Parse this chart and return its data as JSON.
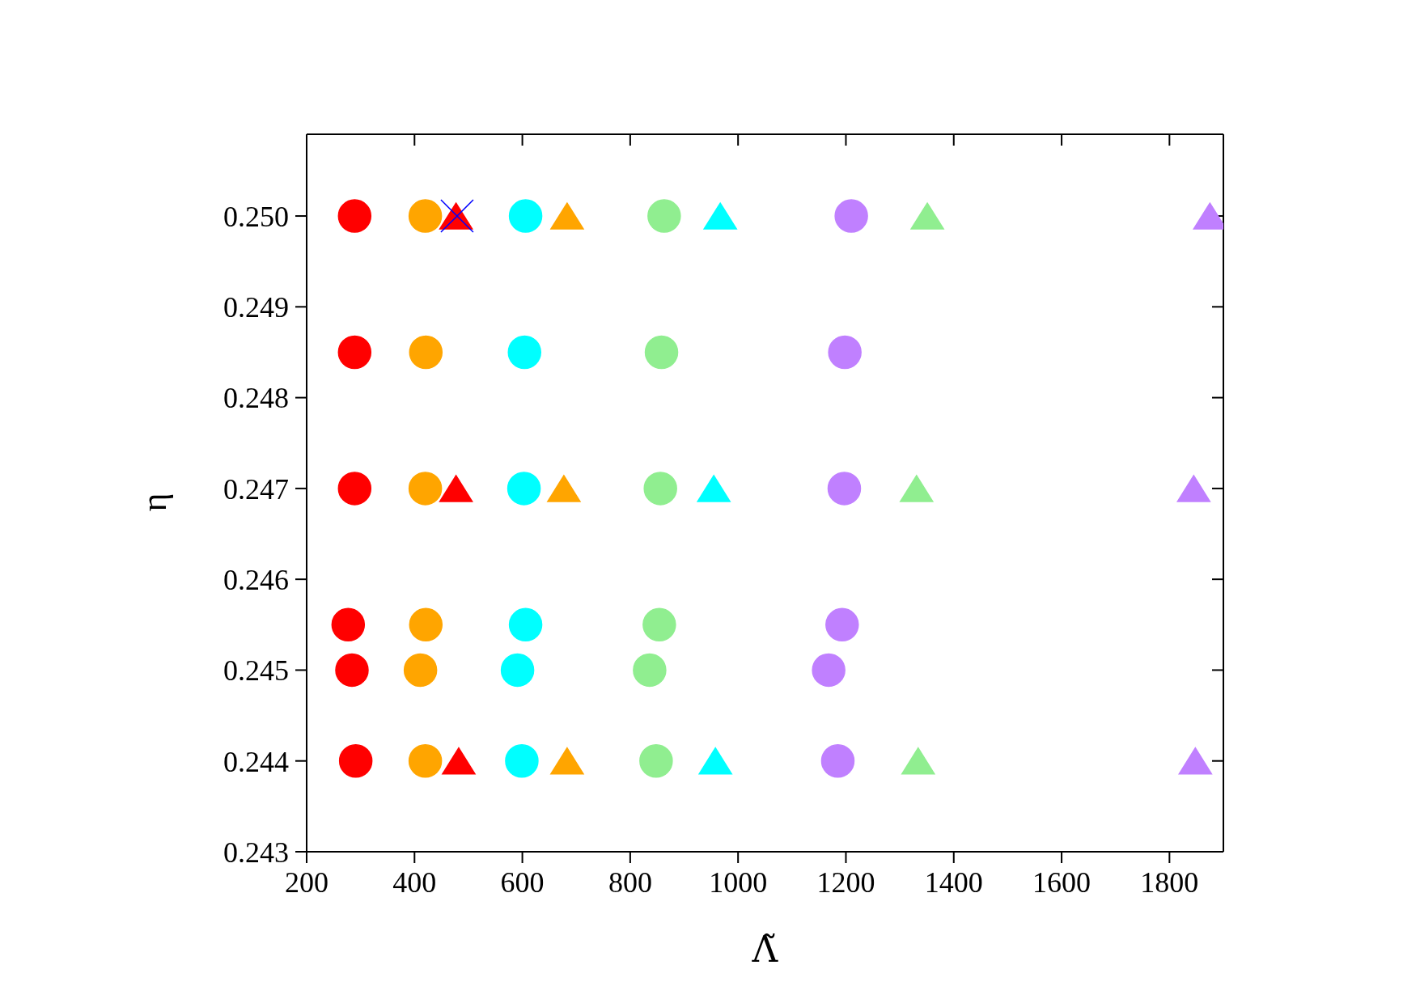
{
  "chart_data": {
    "type": "scatter",
    "xlabel": "Λ̃",
    "ylabel": "η",
    "xlim": [
      200,
      1900
    ],
    "xticks": [
      200,
      400,
      600,
      800,
      1000,
      1200,
      1400,
      1600,
      1800
    ],
    "ylim": [
      0.243,
      0.2509
    ],
    "yticks": [
      {
        "value": 0.243,
        "label": "0.243"
      },
      {
        "value": 0.244,
        "label": "0.244"
      },
      {
        "value": 0.245,
        "label": "0.245"
      },
      {
        "value": 0.246,
        "label": "0.246"
      },
      {
        "value": 0.247,
        "label": "0.247"
      },
      {
        "value": 0.248,
        "label": "0.248"
      },
      {
        "value": 0.249,
        "label": "0.249"
      },
      {
        "value": 0.25,
        "label": "0.250"
      }
    ],
    "series": [
      {
        "color": "#ff0000",
        "marker": "circle",
        "x": [
          289,
          289,
          291
        ],
        "values": [
          0.25,
          0.247,
          0.244
        ]
      },
      {
        "color": "#ff0000",
        "marker": "circle",
        "x": [
          289,
          277,
          284
        ],
        "values": [
          0.2485,
          0.2455,
          0.245
        ]
      },
      {
        "color": "#ff0000",
        "marker": "triangle",
        "x": [
          477
        ],
        "values": [
          0.25
        ]
      },
      {
        "color": "#ff0000",
        "marker": "triangle",
        "x": [
          477,
          482
        ],
        "values": [
          0.247,
          0.244
        ]
      },
      {
        "color": "#0000ff",
        "marker": "cross",
        "x": [
          479
        ],
        "values": [
          0.25
        ]
      },
      {
        "color": "#ffa500",
        "marker": "circle",
        "x": [
          420,
          420,
          420
        ],
        "values": [
          0.25,
          0.247,
          0.244
        ]
      },
      {
        "color": "#ffa500",
        "marker": "circle",
        "x": [
          421,
          421,
          411
        ],
        "values": [
          0.2485,
          0.2455,
          0.245
        ]
      },
      {
        "color": "#ffa500",
        "marker": "triangle",
        "x": [
          683
        ],
        "values": [
          0.25
        ]
      },
      {
        "color": "#ffa500",
        "marker": "triangle",
        "x": [
          677,
          683
        ],
        "values": [
          0.247,
          0.244
        ]
      },
      {
        "color": "#00ffff",
        "marker": "circle",
        "x": [
          606,
          603,
          599
        ],
        "values": [
          0.25,
          0.247,
          0.244
        ]
      },
      {
        "color": "#00ffff",
        "marker": "circle",
        "x": [
          604,
          606,
          591
        ],
        "values": [
          0.2485,
          0.2455,
          0.245
        ]
      },
      {
        "color": "#00ffff",
        "marker": "triangle",
        "x": [
          967
        ],
        "values": [
          0.25
        ]
      },
      {
        "color": "#00ffff",
        "marker": "triangle",
        "x": [
          955,
          958
        ],
        "values": [
          0.247,
          0.244
        ]
      },
      {
        "color": "#90ee90",
        "marker": "circle",
        "x": [
          863,
          856,
          848
        ],
        "values": [
          0.25,
          0.247,
          0.244
        ]
      },
      {
        "color": "#90ee90",
        "marker": "circle",
        "x": [
          858,
          854,
          836
        ],
        "values": [
          0.2485,
          0.2455,
          0.245
        ]
      },
      {
        "color": "#90ee90",
        "marker": "triangle",
        "x": [
          1351
        ],
        "values": [
          0.25
        ]
      },
      {
        "color": "#90ee90",
        "marker": "triangle",
        "x": [
          1331,
          1334
        ],
        "values": [
          0.247,
          0.244
        ]
      },
      {
        "color": "#c080ff",
        "marker": "circle",
        "x": [
          1210,
          1197,
          1185
        ],
        "values": [
          0.25,
          0.247,
          0.244
        ]
      },
      {
        "color": "#c080ff",
        "marker": "circle",
        "x": [
          1198,
          1193,
          1168
        ],
        "values": [
          0.2485,
          0.2455,
          0.245
        ]
      },
      {
        "color": "#c080ff",
        "marker": "triangle",
        "x": [
          1875
        ],
        "values": [
          0.25
        ]
      },
      {
        "color": "#c080ff",
        "marker": "triangle",
        "x": [
          1845,
          1848
        ],
        "values": [
          0.247,
          0.244
        ]
      }
    ]
  }
}
